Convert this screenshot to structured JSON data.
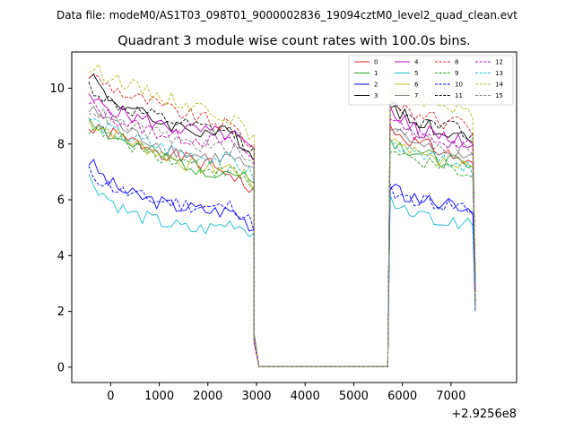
{
  "chart_data": {
    "type": "line",
    "supertitle": "Data file: modeM0/AS1T03_098T01_9000002836_19094cztM0_level2_quad_clean.evt",
    "title": "Quadrant 3 module wise count rates with 100.0s bins.",
    "xlabel": "",
    "ylabel": "",
    "x_offset_label": "+2.9256e8",
    "xlim": [
      -800,
      8350
    ],
    "ylim": [
      -0.55,
      11.3
    ],
    "x_ticks": [
      0,
      1000,
      2000,
      3000,
      4000,
      5000,
      6000,
      7000
    ],
    "y_ticks": [
      0,
      2,
      4,
      6,
      8,
      10
    ],
    "legend_position": "top-right",
    "data_gap": [
      3000,
      5700
    ],
    "x_segment_1": [
      -450,
      2950
    ],
    "x_segment_2": [
      5750,
      7450
    ],
    "series": [
      {
        "name": "0",
        "color": "#d62728",
        "style": "solid",
        "seg1": [
          8.5,
          8.4,
          8.1,
          7.9,
          7.6,
          7.4,
          7.2,
          6.9,
          6.2
        ],
        "seg2": [
          8.6,
          8.3,
          8.0,
          7.9,
          7.7,
          7.5,
          7.2
        ]
      },
      {
        "name": "1",
        "color": "#2ca02c",
        "style": "solid",
        "seg1": [
          9.0,
          8.3,
          8.0,
          7.7,
          7.4,
          7.2,
          7.0,
          7.0,
          6.5
        ],
        "seg2": [
          8.2,
          7.9,
          7.7,
          7.5,
          7.4,
          7.3,
          7.0
        ]
      },
      {
        "name": "2",
        "color": "#0000ff",
        "style": "solid",
        "seg1": [
          7.4,
          6.6,
          6.2,
          6.0,
          5.8,
          5.7,
          5.6,
          5.6,
          5.0
        ],
        "seg2": [
          6.5,
          6.2,
          6.0,
          5.9,
          5.8,
          5.8,
          5.7
        ]
      },
      {
        "name": "3",
        "color": "#000000",
        "style": "solid",
        "seg1": [
          10.6,
          9.6,
          9.3,
          8.9,
          8.7,
          8.5,
          8.4,
          8.4,
          7.6
        ],
        "seg2": [
          9.5,
          9.0,
          8.8,
          8.6,
          8.5,
          8.4,
          8.2
        ]
      },
      {
        "name": "4",
        "color": "#bf00bf",
        "style": "solid",
        "seg1": [
          9.6,
          9.3,
          9.0,
          8.8,
          8.6,
          8.5,
          8.4,
          8.3,
          7.7
        ],
        "seg2": [
          9.1,
          8.8,
          8.5,
          8.4,
          8.3,
          8.2,
          8.0
        ]
      },
      {
        "name": "5",
        "color": "#17becf",
        "style": "solid",
        "seg1": [
          6.8,
          6.0,
          5.5,
          5.3,
          5.1,
          4.9,
          5.0,
          5.2,
          4.8
        ],
        "seg2": [
          6.0,
          5.6,
          5.4,
          5.3,
          5.2,
          5.2,
          5.0
        ]
      },
      {
        "name": "6",
        "color": "#bcbd22",
        "style": "solid",
        "seg1": [
          8.8,
          8.5,
          8.1,
          7.8,
          7.5,
          7.2,
          7.1,
          7.2,
          6.5
        ],
        "seg2": [
          8.0,
          7.8,
          7.6,
          7.4,
          7.3,
          7.2,
          7.0
        ]
      },
      {
        "name": "7",
        "color": "#7f7f7f",
        "style": "solid",
        "seg1": [
          9.2,
          8.9,
          8.4,
          8.1,
          7.8,
          7.6,
          7.5,
          7.5,
          6.9
        ],
        "seg2": [
          8.5,
          8.2,
          8.0,
          7.8,
          7.7,
          7.6,
          7.4
        ]
      },
      {
        "name": "8",
        "color": "#d62728",
        "style": "dashed",
        "seg1": [
          10.5,
          10.1,
          9.7,
          9.5,
          9.2,
          9.0,
          8.8,
          8.6,
          7.9
        ],
        "seg2": [
          9.6,
          9.3,
          9.1,
          8.9,
          8.8,
          8.7,
          8.5
        ]
      },
      {
        "name": "9",
        "color": "#2ca02c",
        "style": "dashed",
        "seg1": [
          8.6,
          8.3,
          8.0,
          7.7,
          7.5,
          7.3,
          7.1,
          7.0,
          6.4
        ],
        "seg2": [
          7.9,
          7.6,
          7.4,
          7.3,
          7.2,
          7.0,
          6.9
        ]
      },
      {
        "name": "10",
        "color": "#0000ff",
        "style": "dashed",
        "seg1": [
          7.0,
          6.5,
          6.2,
          6.0,
          5.9,
          5.8,
          5.7,
          5.8,
          5.1
        ],
        "seg2": [
          6.3,
          6.1,
          6.0,
          5.9,
          5.8,
          5.8,
          5.6
        ]
      },
      {
        "name": "11",
        "color": "#000000",
        "style": "dashed",
        "seg1": [
          10.1,
          9.5,
          9.2,
          9.0,
          8.8,
          8.6,
          8.5,
          8.4,
          7.7
        ],
        "seg2": [
          9.3,
          9.0,
          8.8,
          8.7,
          8.6,
          8.5,
          8.3
        ]
      },
      {
        "name": "12",
        "color": "#bf00bf",
        "style": "dashed",
        "seg1": [
          9.4,
          9.0,
          8.7,
          8.5,
          8.3,
          8.2,
          8.1,
          8.0,
          7.4
        ],
        "seg2": [
          8.8,
          8.5,
          8.3,
          8.2,
          8.1,
          8.0,
          7.8
        ]
      },
      {
        "name": "13",
        "color": "#17becf",
        "style": "dashed",
        "seg1": [
          8.9,
          8.5,
          8.2,
          8.0,
          7.8,
          7.6,
          7.5,
          7.4,
          6.8
        ],
        "seg2": [
          8.1,
          7.8,
          7.6,
          7.5,
          7.4,
          7.3,
          7.1
        ]
      },
      {
        "name": "14",
        "color": "#bcbd22",
        "style": "dashed",
        "seg1": [
          10.7,
          10.5,
          10.1,
          9.8,
          9.6,
          9.4,
          9.2,
          8.9,
          8.1
        ],
        "seg2": [
          10.0,
          9.8,
          9.6,
          9.5,
          9.4,
          9.3,
          9.1
        ]
      },
      {
        "name": "15",
        "color": "#7f7f7f",
        "style": "dashed",
        "seg1": [
          9.3,
          8.9,
          8.6,
          8.4,
          8.2,
          8.0,
          7.9,
          7.8,
          7.2
        ],
        "seg2": [
          8.7,
          8.4,
          8.2,
          8.1,
          8.0,
          7.9,
          7.7
        ]
      }
    ]
  }
}
